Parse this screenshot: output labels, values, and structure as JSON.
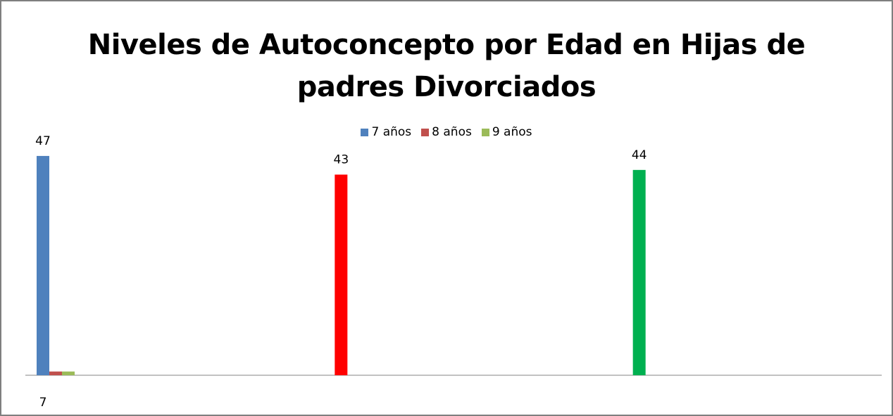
{
  "chart_data": {
    "type": "bar",
    "title_line1": "Niveles de Autoconcepto por Edad en Hijas de",
    "title_line2": "padres Divorciados",
    "categories": [
      "7",
      "",
      ""
    ],
    "series": [
      {
        "name": "7 años",
        "color": "#4f81bd"
      },
      {
        "name": "8 años",
        "color": "#c0504d"
      },
      {
        "name": "9 años",
        "color": "#9bbb59"
      }
    ],
    "bars": [
      {
        "series": 0,
        "category": 0,
        "value": 47,
        "label": "47",
        "color": "#4f81bd"
      },
      {
        "series": 1,
        "category": 0,
        "value": 0.8,
        "label": "",
        "color": "#c0504d"
      },
      {
        "series": 2,
        "category": 0,
        "value": 0.8,
        "label": "",
        "color": "#9bbb59"
      },
      {
        "series": 1,
        "category": 1,
        "value": 43,
        "label": "43",
        "color": "#ff0000"
      },
      {
        "series": 2,
        "category": 2,
        "value": 44,
        "label": "44",
        "color": "#00b050"
      }
    ],
    "ylim": [
      0,
      50
    ],
    "grid": false,
    "legend_position": "top"
  }
}
